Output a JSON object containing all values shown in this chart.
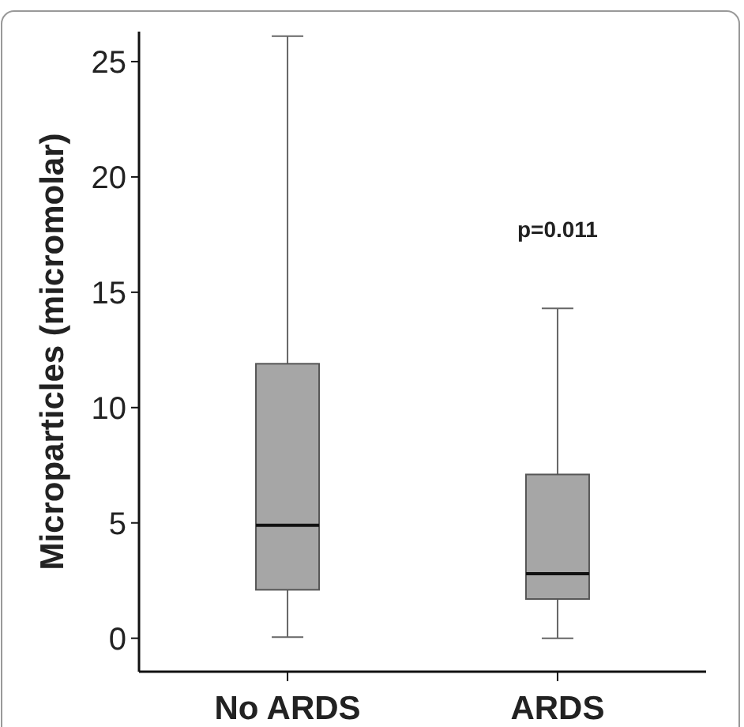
{
  "chart_data": {
    "type": "box",
    "ylabel": "Microparticles (micromolar)",
    "categories": [
      "No ARDS",
      "ARDS"
    ],
    "boxes": [
      {
        "low": 0.05,
        "q1": 2.1,
        "median": 4.9,
        "q3": 11.9,
        "high": 26.1
      },
      {
        "low": 0,
        "q1": 1.7,
        "median": 2.8,
        "q3": 7.1,
        "high": 14.3
      }
    ],
    "color": "#a6a6a6",
    "ylim": [
      -1.45,
      26.3
    ],
    "yticks": [
      0,
      5,
      10,
      15,
      20,
      25
    ],
    "grid": false,
    "annotations": [
      "p=0.011"
    ]
  }
}
